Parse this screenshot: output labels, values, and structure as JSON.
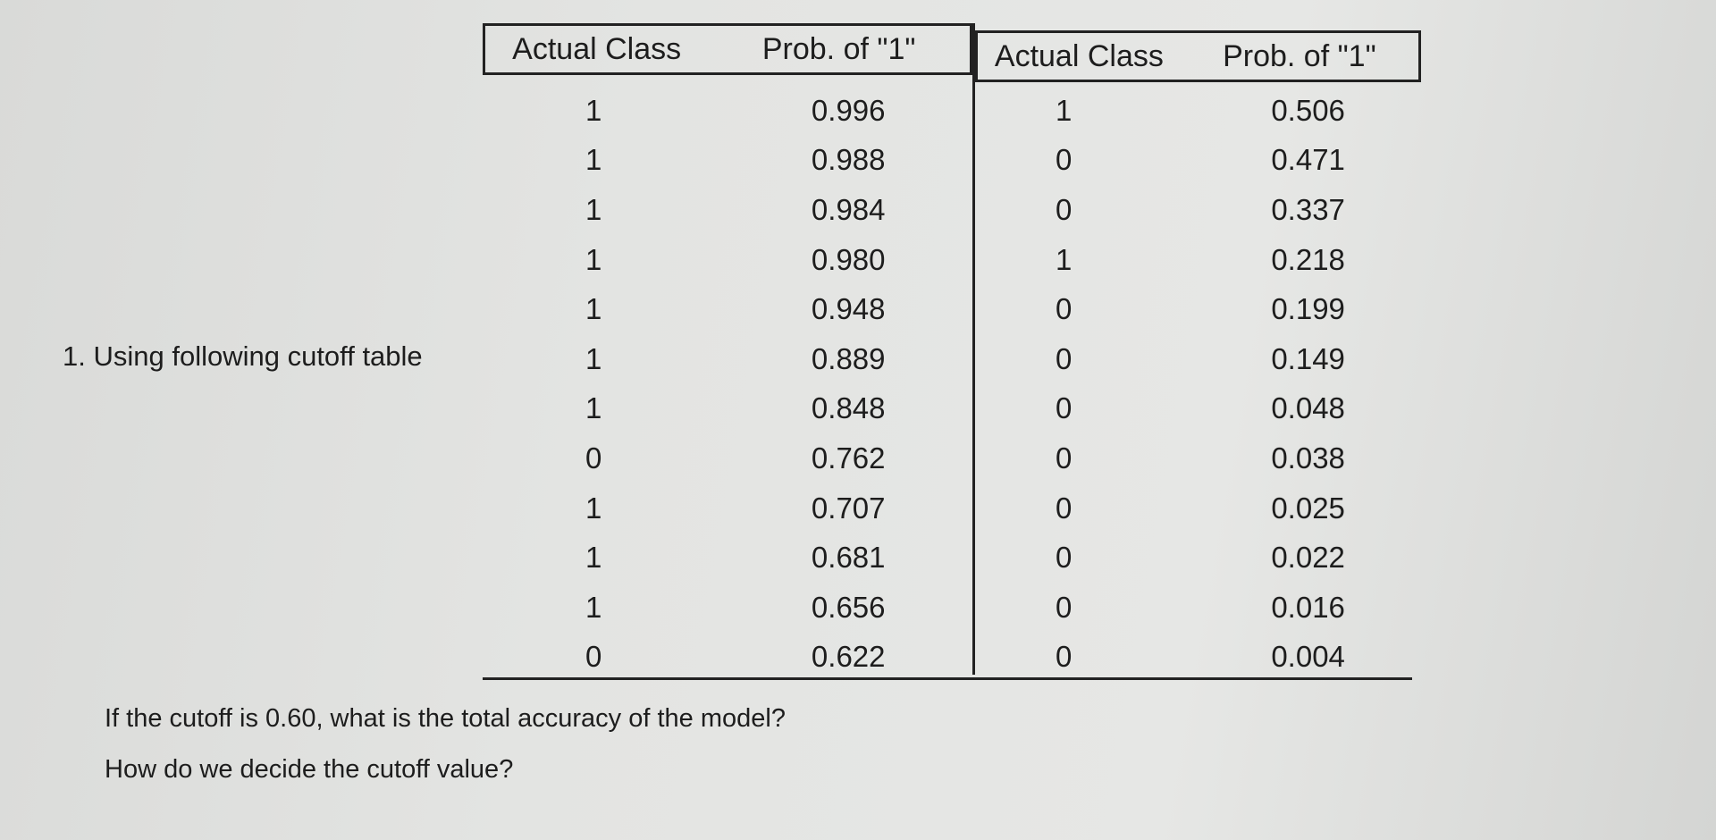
{
  "prompt": "1. Using following cutoff table",
  "table": {
    "left": {
      "header_actual": "Actual Class",
      "header_prob": "Prob. of \"1\"",
      "rows": [
        {
          "actual": "1",
          "prob": "0.996"
        },
        {
          "actual": "1",
          "prob": "0.988"
        },
        {
          "actual": "1",
          "prob": "0.984"
        },
        {
          "actual": "1",
          "prob": "0.980"
        },
        {
          "actual": "1",
          "prob": "0.948"
        },
        {
          "actual": "1",
          "prob": "0.889"
        },
        {
          "actual": "1",
          "prob": "0.848"
        },
        {
          "actual": "0",
          "prob": "0.762"
        },
        {
          "actual": "1",
          "prob": "0.707"
        },
        {
          "actual": "1",
          "prob": "0.681"
        },
        {
          "actual": "1",
          "prob": "0.656"
        },
        {
          "actual": "0",
          "prob": "0.622"
        }
      ]
    },
    "right": {
      "header_actual": "Actual Class",
      "header_prob": "Prob. of \"1\"",
      "rows": [
        {
          "actual": "1",
          "prob": "0.506"
        },
        {
          "actual": "0",
          "prob": "0.471"
        },
        {
          "actual": "0",
          "prob": "0.337"
        },
        {
          "actual": "1",
          "prob": "0.218"
        },
        {
          "actual": "0",
          "prob": "0.199"
        },
        {
          "actual": "0",
          "prob": "0.149"
        },
        {
          "actual": "0",
          "prob": "0.048"
        },
        {
          "actual": "0",
          "prob": "0.038"
        },
        {
          "actual": "0",
          "prob": "0.025"
        },
        {
          "actual": "0",
          "prob": "0.022"
        },
        {
          "actual": "0",
          "prob": "0.016"
        },
        {
          "actual": "0",
          "prob": "0.004"
        }
      ]
    }
  },
  "questions": [
    "If the cutoff is 0.60, what is the total accuracy of the model?",
    "How do we decide the cutoff value?"
  ]
}
